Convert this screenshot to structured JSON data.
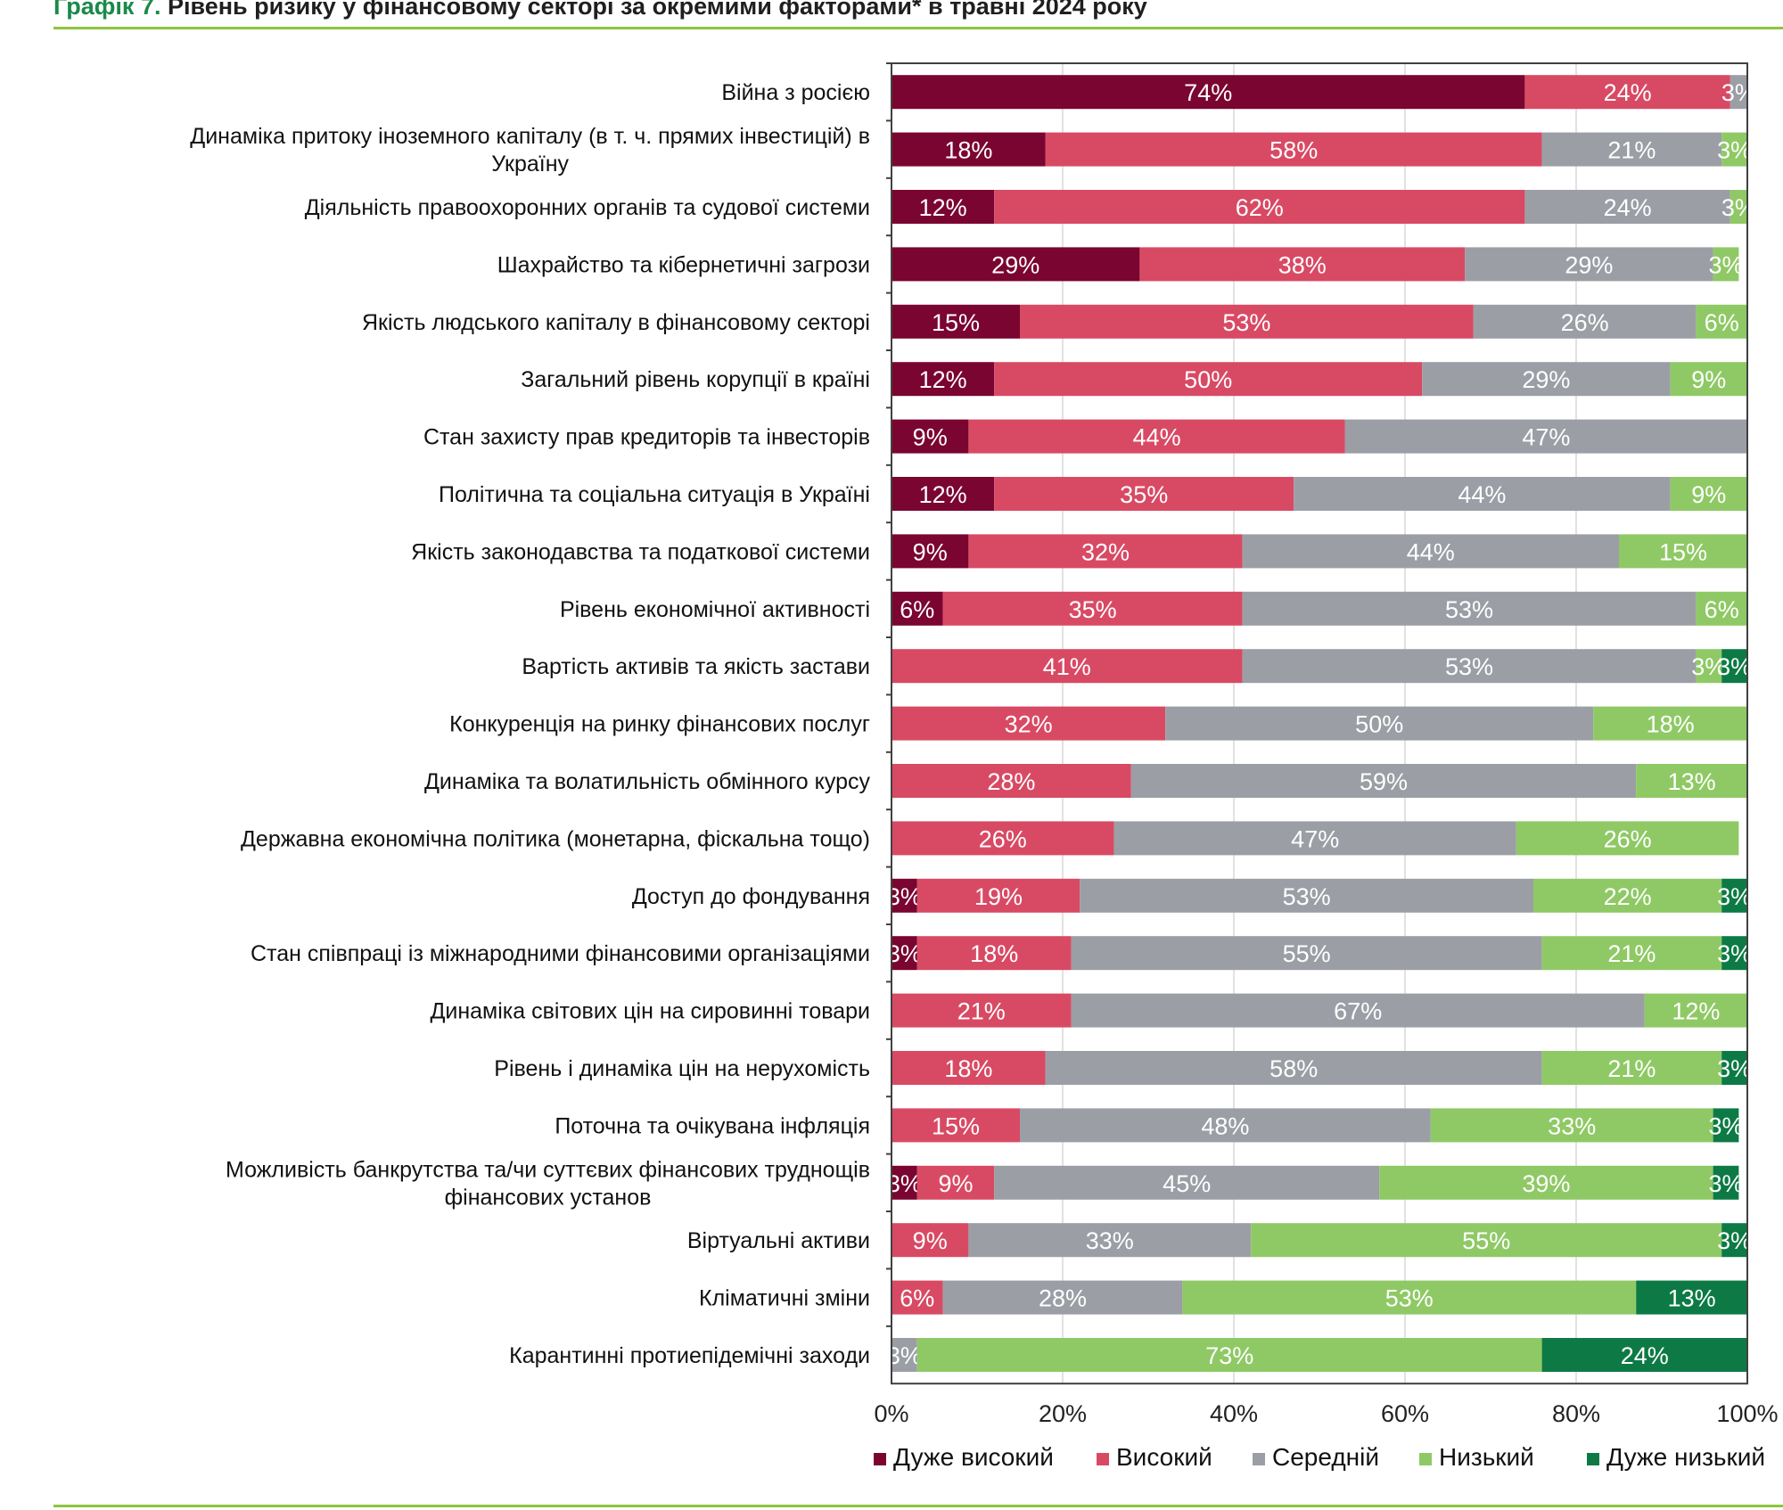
{
  "chart_data": {
    "type": "bar",
    "orientation": "horizontal",
    "stacked": true,
    "title_prefix": "Графік 7.",
    "title": "Рівень ризику у фінансовому секторі за окремими факторами* в травні 2024 року",
    "xlim": [
      0,
      100
    ],
    "x_ticks": [
      "0%",
      "20%",
      "40%",
      "60%",
      "80%",
      "100%"
    ],
    "grid": true,
    "legend_position": "bottom",
    "categories": [
      [
        "Війна з росією"
      ],
      [
        "Динаміка притоку іноземного капіталу (в т. ч. прямих інвестицій) в",
        "Україну"
      ],
      [
        "Діяльність правоохоронних органів та судової системи"
      ],
      [
        "Шахрайство та кібернетичні загрози"
      ],
      [
        "Якість людського капіталу в фінансовому секторі"
      ],
      [
        "Загальний рівень корупції в країні"
      ],
      [
        "Стан захисту прав кредиторів та інвесторів"
      ],
      [
        "Політична та соціальна ситуація в Україні"
      ],
      [
        "Якість законодавства та податкової системи"
      ],
      [
        "Рівень економічної активності"
      ],
      [
        "Вартість активів та якість застави"
      ],
      [
        "Конкуренція на ринку фінансових послуг"
      ],
      [
        "Динаміка та волатильність обмінного курсу"
      ],
      [
        "Державна економічна політика (монетарна, фіскальна тощо)"
      ],
      [
        "Доступ до фондування"
      ],
      [
        "Стан співпраці із міжнародними фінансовими організаціями"
      ],
      [
        "Динаміка світових цін на сировинні товари"
      ],
      [
        "Рівень і динаміка цін на нерухомість"
      ],
      [
        "Поточна та очікувана інфляція"
      ],
      [
        "Можливість банкрутства та/чи суттєвих фінансових труднощів",
        "фінансових установ"
      ],
      [
        "Віртуальні активи"
      ],
      [
        "Кліматичні зміни"
      ],
      [
        "Карантинні протиепідемічні заходи"
      ]
    ],
    "series": [
      {
        "name": "Дуже високий",
        "color": "#7a0530",
        "values": [
          74,
          18,
          12,
          29,
          15,
          12,
          9,
          12,
          9,
          6,
          0,
          0,
          0,
          0,
          3,
          3,
          0,
          0,
          0,
          3,
          0,
          0,
          0
        ]
      },
      {
        "name": "Високий",
        "color": "#d84a64",
        "values": [
          24,
          58,
          62,
          38,
          53,
          50,
          44,
          35,
          32,
          35,
          41,
          32,
          28,
          26,
          19,
          18,
          21,
          18,
          15,
          9,
          9,
          6,
          0
        ]
      },
      {
        "name": "Середній",
        "color": "#9b9fa5",
        "values": [
          3,
          21,
          24,
          29,
          26,
          29,
          47,
          44,
          44,
          53,
          53,
          50,
          59,
          47,
          53,
          55,
          67,
          58,
          48,
          45,
          33,
          28,
          3
        ]
      },
      {
        "name": "Низький",
        "color": "#8fc965",
        "values": [
          0,
          3,
          3,
          3,
          6,
          9,
          0,
          9,
          15,
          6,
          3,
          18,
          13,
          26,
          22,
          21,
          12,
          21,
          33,
          39,
          55,
          53,
          73
        ]
      },
      {
        "name": "Дуже низький",
        "color": "#0d7a45",
        "values": [
          0,
          0,
          0,
          0,
          0,
          0,
          0,
          0,
          0,
          0,
          3,
          0,
          0,
          0,
          3,
          3,
          0,
          3,
          3,
          3,
          3,
          13,
          24
        ]
      }
    ]
  }
}
